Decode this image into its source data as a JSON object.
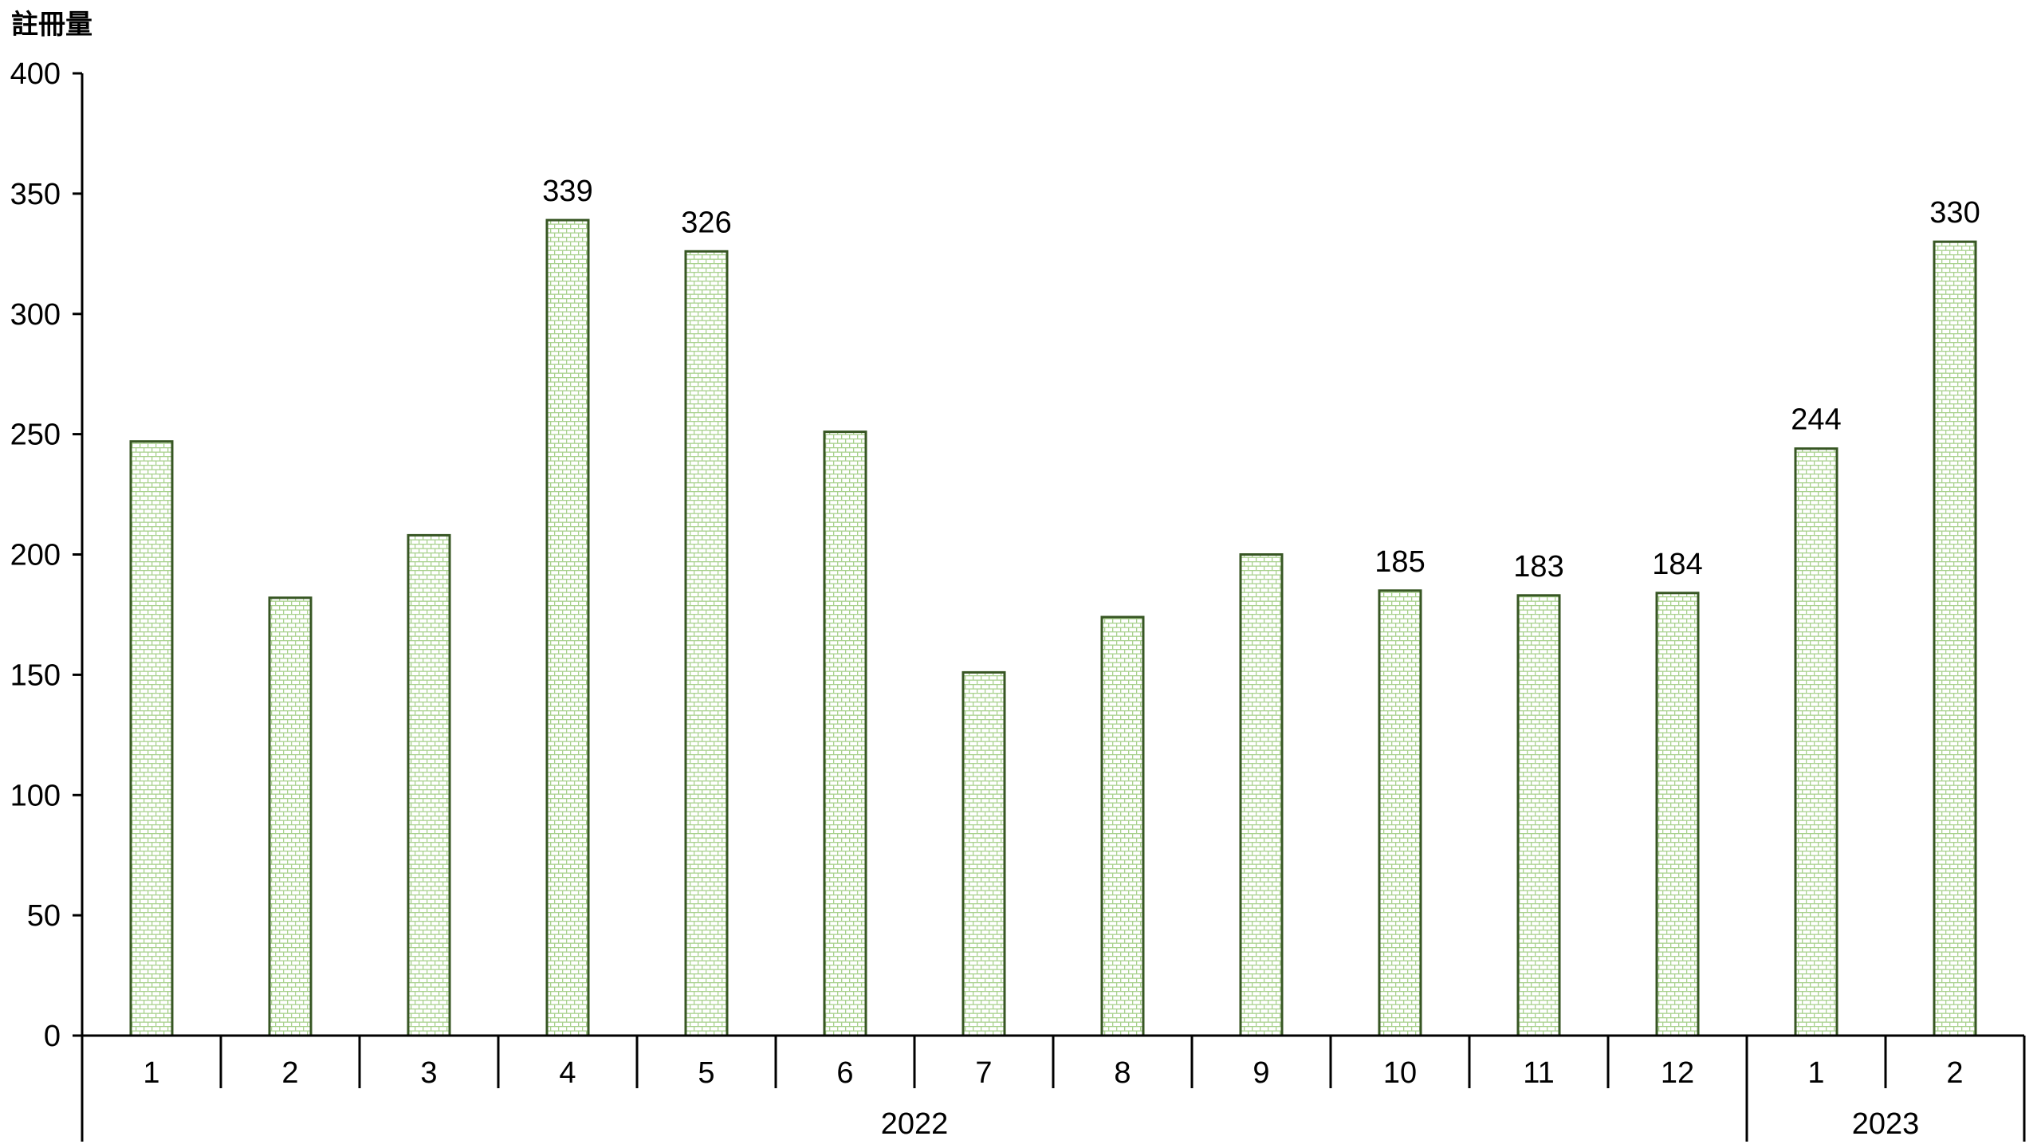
{
  "chart_data": {
    "type": "bar",
    "title": "註冊量",
    "categories": [
      "1",
      "2",
      "3",
      "4",
      "5",
      "6",
      "7",
      "8",
      "9",
      "10",
      "11",
      "12",
      "1",
      "2"
    ],
    "year_groups": [
      {
        "label": "2022",
        "start": 0,
        "end": 11
      },
      {
        "label": "2023",
        "start": 12,
        "end": 13
      }
    ],
    "values": [
      247,
      182,
      208,
      339,
      326,
      251,
      151,
      174,
      200,
      185,
      183,
      184,
      244,
      330
    ],
    "data_labels": [
      "",
      "",
      "",
      "339",
      "326",
      "",
      "",
      "",
      "",
      "185",
      "183",
      "184",
      "244",
      "330"
    ],
    "ylim": [
      0,
      400
    ],
    "y_ticks": [
      0,
      50,
      100,
      150,
      200,
      250,
      300,
      350,
      400
    ],
    "xlabel": "",
    "ylabel": "註冊量",
    "grid": false,
    "legend_position": "none",
    "bar_pattern": "brick-hatch",
    "colors": {
      "bar_border": "#375623",
      "bar_pattern_line": "#a9d18e",
      "bar_fill": "#ffffff",
      "axis": "#000000",
      "text": "#000000",
      "background": "#ffffff"
    }
  }
}
